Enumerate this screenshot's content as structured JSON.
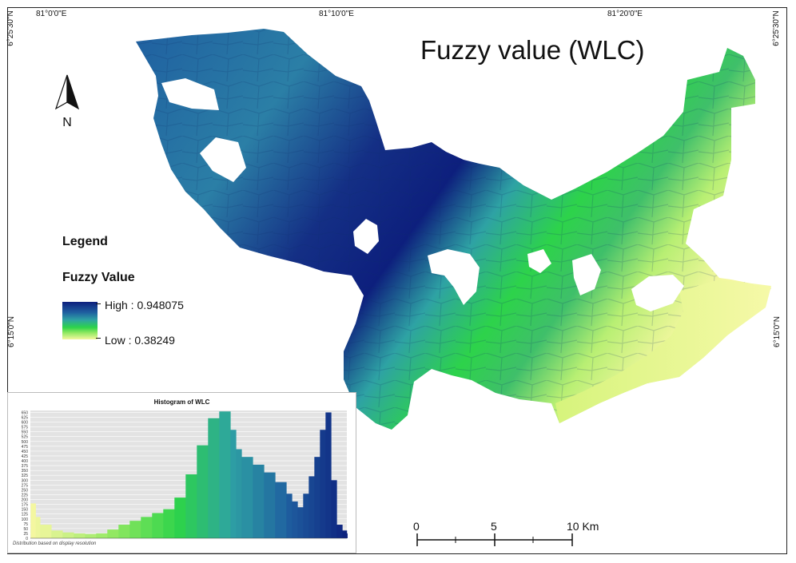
{
  "map": {
    "title": "Fuzzy value (WLC)",
    "coordinates": {
      "top": [
        "81°0'0\"E",
        "81°10'0\"E",
        "81°20'0\"E"
      ],
      "left": [
        "6°25'30\"N",
        "6°15'0\"N"
      ],
      "right": [
        "6°25'30\"N",
        "6°15'0\"N"
      ]
    },
    "north_arrow_label": "N",
    "colors": {
      "high": "#0d1f7d",
      "mid_blue": "#1f5fa0",
      "teal": "#2ea2a4",
      "green": "#2dd34a",
      "light_green": "#8fe860",
      "low": "#f4f7a0"
    }
  },
  "legend": {
    "title": "Legend",
    "subtitle": "Fuzzy Value",
    "high_label": "High : 0.948075",
    "low_label": "Low : 0.38249"
  },
  "histogram": {
    "title": "Histogram of WLC",
    "footnote": "Distribution based on display resolution",
    "y_ticks": [
      "0",
      "25",
      "50",
      "75",
      "100",
      "125",
      "150",
      "175",
      "200",
      "225",
      "250",
      "275",
      "300",
      "325",
      "350",
      "375",
      "400",
      "425",
      "450",
      "475",
      "500",
      "525",
      "550",
      "575",
      "600",
      "625",
      "650"
    ]
  },
  "chart_data": {
    "type": "bar",
    "title": "Histogram of WLC",
    "xlabel": "",
    "ylabel": "",
    "xlim": [
      0.38249,
      0.948075
    ],
    "ylim": [
      0,
      660
    ],
    "x": [
      0.383,
      0.392,
      0.4,
      0.42,
      0.44,
      0.46,
      0.48,
      0.5,
      0.52,
      0.54,
      0.56,
      0.58,
      0.6,
      0.62,
      0.64,
      0.66,
      0.68,
      0.7,
      0.72,
      0.74,
      0.75,
      0.76,
      0.78,
      0.8,
      0.82,
      0.84,
      0.85,
      0.86,
      0.87,
      0.88,
      0.89,
      0.9,
      0.91,
      0.92,
      0.93,
      0.94,
      0.948
    ],
    "values": [
      180,
      110,
      70,
      40,
      30,
      25,
      22,
      25,
      45,
      70,
      90,
      110,
      130,
      150,
      210,
      330,
      480,
      620,
      655,
      560,
      460,
      420,
      380,
      340,
      290,
      230,
      190,
      160,
      230,
      320,
      420,
      560,
      650,
      300,
      70,
      40,
      25
    ]
  },
  "scale_bar": {
    "labels": [
      "0",
      "5",
      "10 Km"
    ]
  }
}
